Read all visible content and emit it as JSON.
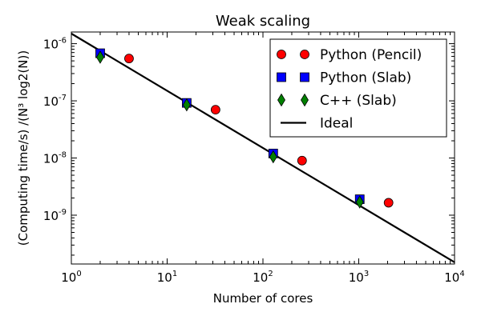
{
  "chart_data": {
    "type": "scatter",
    "title": "Weak scaling",
    "xlabel": "Number of cores",
    "ylabel": "(Computing time/s) /(N³ log2(N))",
    "xscale": "log",
    "yscale": "log",
    "xlim": [
      1,
      10000
    ],
    "ylim": [
      1.4e-10,
      1.6e-06
    ],
    "x_ticks": [
      {
        "base": "10",
        "exp": "0"
      },
      {
        "base": "10",
        "exp": "1"
      },
      {
        "base": "10",
        "exp": "2"
      },
      {
        "base": "10",
        "exp": "3"
      },
      {
        "base": "10",
        "exp": "4"
      }
    ],
    "y_ticks": [
      {
        "base": "10",
        "exp": "-9"
      },
      {
        "base": "10",
        "exp": "-8"
      },
      {
        "base": "10",
        "exp": "-7"
      },
      {
        "base": "10",
        "exp": "-6"
      }
    ],
    "legend_position": "top-right",
    "grid": false,
    "series": [
      {
        "name": "Python (Pencil)",
        "marker": "circle",
        "color": "#ff0000",
        "x": [
          4,
          32,
          256,
          2048
        ],
        "y": [
          5.5e-07,
          7e-08,
          9e-09,
          1.65e-09
        ]
      },
      {
        "name": "Python (Slab)",
        "marker": "square",
        "color": "#0000ff",
        "x": [
          2,
          16,
          128,
          1024
        ],
        "y": [
          6.8e-07,
          9.2e-08,
          1.2e-08,
          1.9e-09
        ]
      },
      {
        "name": "C++ (Slab)",
        "marker": "diamond",
        "color": "#008000",
        "x": [
          2,
          16,
          128,
          1024
        ],
        "y": [
          5.8e-07,
          8.5e-08,
          1.05e-08,
          1.7e-09
        ]
      },
      {
        "name": "Ideal",
        "marker": "line",
        "color": "#000000",
        "x": [
          1,
          10000
        ],
        "y": [
          1.5e-06,
          1.5e-10
        ]
      }
    ]
  }
}
